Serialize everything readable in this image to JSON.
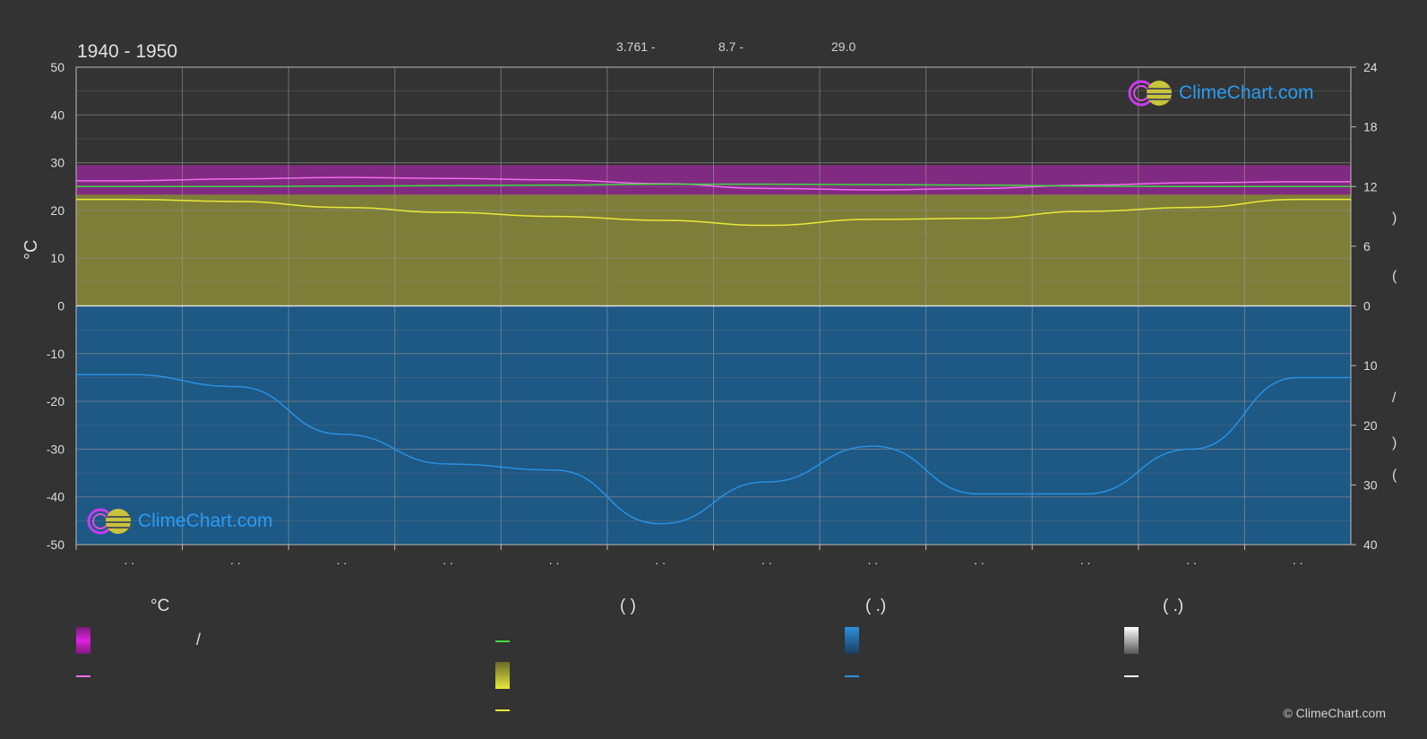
{
  "period": "1940 - 1950",
  "header": {
    "h1": "3.761 -",
    "h2": "8.7 -",
    "h3": "29.0"
  },
  "left_unit": "°C",
  "right_parens": [
    "(",
    ")",
    "(",
    ")"
  ],
  "right_slash": "/",
  "right_dot_paren": "( . )",
  "month_ticks": [
    ". .",
    ". .",
    ". .",
    ". .",
    ". .",
    ". .",
    ". .",
    ". .",
    ". .",
    ". .",
    ". .",
    ". ."
  ],
  "legend": {
    "col1_head": "°C",
    "col1_slash": "/",
    "col2_head": "(          )",
    "col3_head": "(   .)",
    "col4_head": "(   .)"
  },
  "logo_text": "ClimeChart.com",
  "copyright": "© ClimeChart.com",
  "colors": {
    "background": "#333333",
    "magenta": "#e020e0",
    "green": "#3ddc3d",
    "yellow": "#e8e83a",
    "olive_band": "#8c8c3a",
    "blue_band": "#1c5c8e",
    "blue_line": "#2a90e0",
    "white": "#ffffff",
    "pink_line": "#f06cf0"
  },
  "chart_data": {
    "type": "area",
    "left_axis": {
      "label": "°C",
      "ylim": [
        -50,
        50
      ],
      "ticks": [
        50,
        40,
        30,
        20,
        10,
        0,
        -10,
        -20,
        -30,
        -40,
        -50
      ]
    },
    "right_axis_top": {
      "ylim": [
        0,
        24
      ],
      "ticks": [
        24,
        18,
        12,
        6,
        0
      ]
    },
    "right_axis_bottom": {
      "ylim": [
        0,
        40
      ],
      "ticks": [
        0,
        10,
        20,
        30,
        40
      ]
    },
    "x": {
      "months": 12
    },
    "series": [
      {
        "key": "pink",
        "axis": "temp",
        "values": [
          26.2,
          26.6,
          26.9,
          26.7,
          26.4,
          25.6,
          24.6,
          24.3,
          24.6,
          25.3,
          25.8,
          26.0
        ]
      },
      {
        "key": "green",
        "axis": "temp",
        "values": [
          25.0,
          25.0,
          25.1,
          25.2,
          25.3,
          25.5,
          25.5,
          25.4,
          25.3,
          25.1,
          25.0,
          25.0
        ]
      },
      {
        "key": "yellow",
        "axis": "sun",
        "values": [
          10.7,
          10.5,
          9.9,
          9.4,
          9.0,
          8.6,
          8.1,
          8.7,
          8.8,
          9.5,
          9.9,
          10.7
        ]
      },
      {
        "key": "blue",
        "axis": "rain",
        "values": [
          11.5,
          13.5,
          21.5,
          26.5,
          27.5,
          36.5,
          29.5,
          23.5,
          31.5,
          31.5,
          24.0,
          12.0
        ]
      }
    ],
    "bands": [
      {
        "key": "magenta_band",
        "axis": "temp",
        "low": 23.3,
        "high": 29.5
      },
      {
        "key": "olive_band",
        "axis": "sun",
        "low": 0,
        "high": 11.2
      },
      {
        "key": "blue_band",
        "axis": "rain",
        "low": 0,
        "high": 40
      }
    ]
  }
}
